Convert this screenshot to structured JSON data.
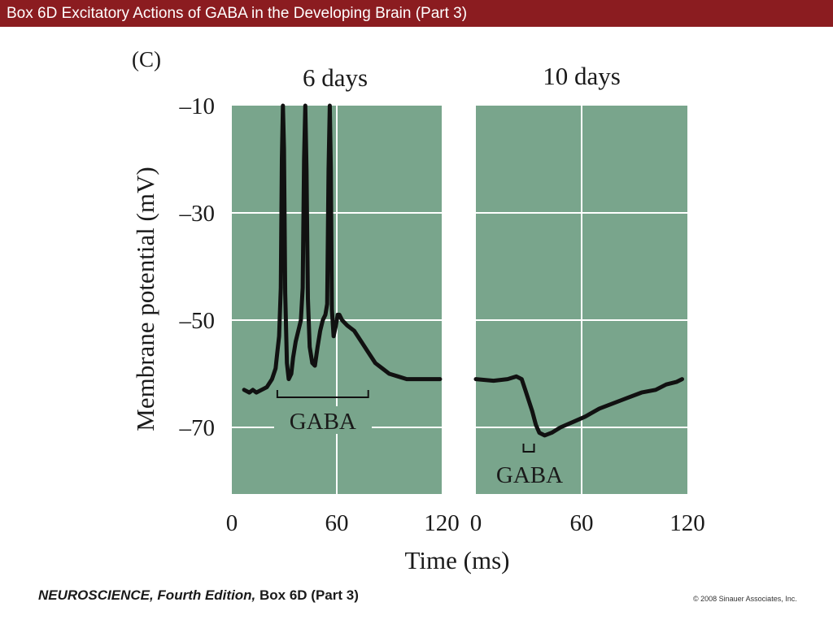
{
  "slide": {
    "title": "Box 6D  Excitatory Actions of GABA in the Developing Brain (Part 3)",
    "footer": {
      "book": "NEUROSCIENCE,",
      "edition": "Fourth Edition,",
      "ref": "Box 6D (Part 3)",
      "copyright": "© 2008 Sinauer Associates, Inc."
    }
  },
  "chart_data": {
    "type": "line",
    "panel_label": "(C)",
    "ylabel": "Membrane potential (mV)",
    "xlabel": "Time (ms)",
    "ylim": [
      -82,
      -10
    ],
    "yticks": [
      -10,
      -30,
      -50,
      -70
    ],
    "ytick_labels": [
      "–10",
      "–30",
      "–50",
      "–70"
    ],
    "colors": {
      "panel": "#79a58c",
      "trace": "#111111",
      "grid": "#ffffff"
    },
    "panels": [
      {
        "title": "6 days",
        "xlim": [
          0,
          120
        ],
        "xticks": [
          0,
          60,
          120
        ],
        "xtick_labels": [
          "0",
          "60",
          "120"
        ],
        "grid_x": [
          60
        ],
        "gaba_label": "GABA",
        "gaba_bar": [
          26,
          78
        ],
        "points": [
          [
            7,
            -63
          ],
          [
            10,
            -63.5
          ],
          [
            12,
            -63
          ],
          [
            14,
            -63.5
          ],
          [
            17,
            -63
          ],
          [
            20,
            -62.5
          ],
          [
            23,
            -61
          ],
          [
            25,
            -59
          ],
          [
            26,
            -56
          ],
          [
            27,
            -53
          ],
          [
            28,
            -44
          ],
          [
            28.6,
            -20
          ],
          [
            29.2,
            -10
          ],
          [
            29.8,
            -18
          ],
          [
            30.5,
            -45
          ],
          [
            31.5,
            -58
          ],
          [
            32.5,
            -61
          ],
          [
            34,
            -60
          ],
          [
            35,
            -57
          ],
          [
            36.5,
            -54
          ],
          [
            38,
            -52
          ],
          [
            39.5,
            -50
          ],
          [
            40.5,
            -44
          ],
          [
            41.3,
            -20
          ],
          [
            42,
            -10
          ],
          [
            42.7,
            -22
          ],
          [
            43.5,
            -46
          ],
          [
            44.5,
            -55
          ],
          [
            46,
            -58
          ],
          [
            47.5,
            -58.5
          ],
          [
            49,
            -55
          ],
          [
            50.5,
            -52
          ],
          [
            52,
            -50
          ],
          [
            53.5,
            -49
          ],
          [
            54.5,
            -47
          ],
          [
            55.3,
            -22
          ],
          [
            56,
            -10
          ],
          [
            56.6,
            -22
          ],
          [
            57.2,
            -48
          ],
          [
            58.2,
            -53
          ],
          [
            59.5,
            -51
          ],
          [
            60.5,
            -49
          ],
          [
            61.5,
            -49
          ],
          [
            63,
            -50
          ],
          [
            66,
            -51
          ],
          [
            70,
            -52
          ],
          [
            74,
            -54
          ],
          [
            78,
            -56
          ],
          [
            82,
            -58
          ],
          [
            86,
            -59
          ],
          [
            90,
            -60
          ],
          [
            95,
            -60.5
          ],
          [
            100,
            -61
          ],
          [
            105,
            -61
          ],
          [
            110,
            -61
          ],
          [
            115,
            -61
          ],
          [
            119,
            -61
          ]
        ]
      },
      {
        "title": "10 days",
        "xlim": [
          0,
          120
        ],
        "xticks": [
          0,
          60,
          120
        ],
        "xtick_labels": [
          "0",
          "60",
          "120"
        ],
        "grid_x": [
          60
        ],
        "gaba_label": "GABA",
        "gaba_bar": [
          27,
          33
        ],
        "points": [
          [
            0,
            -61
          ],
          [
            10,
            -61.3
          ],
          [
            18,
            -61
          ],
          [
            23,
            -60.5
          ],
          [
            26,
            -61
          ],
          [
            28,
            -63
          ],
          [
            30,
            -65
          ],
          [
            32,
            -67
          ],
          [
            34,
            -69.5
          ],
          [
            36,
            -71
          ],
          [
            39,
            -71.5
          ],
          [
            43,
            -71
          ],
          [
            48,
            -70
          ],
          [
            55,
            -69
          ],
          [
            62,
            -68
          ],
          [
            70,
            -66.5
          ],
          [
            78,
            -65.5
          ],
          [
            86,
            -64.5
          ],
          [
            94,
            -63.5
          ],
          [
            102,
            -63
          ],
          [
            108,
            -62
          ],
          [
            114,
            -61.5
          ],
          [
            117,
            -61
          ]
        ]
      }
    ]
  }
}
